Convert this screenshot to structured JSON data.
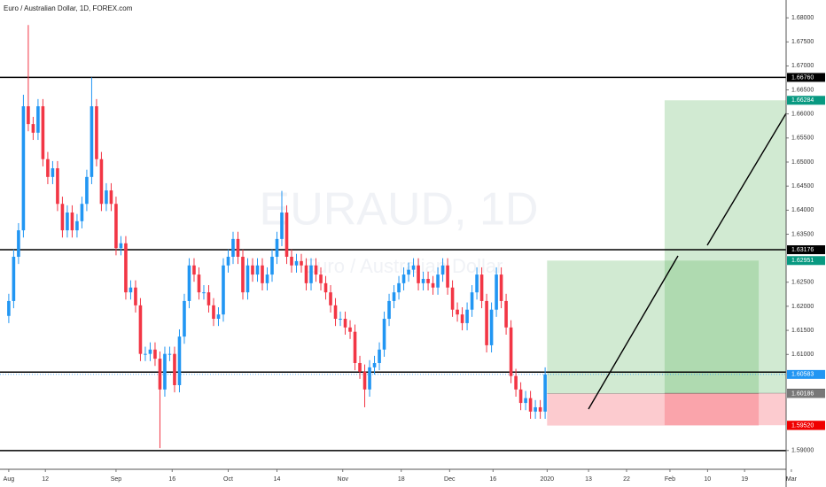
{
  "chart_data": {
    "type": "candlestick",
    "title": "Euro / Australian Dollar, 1D, FOREX.com",
    "watermark": {
      "symbol": "EURAUD, 1D",
      "description": "Euro / Australian Dollar"
    },
    "up_color": "#2196f3",
    "down_color": "#f23645",
    "open": [
      1.618,
      1.6211,
      1.6303,
      1.6358,
      1.6616,
      1.6579,
      1.6561,
      1.6616,
      1.6506,
      1.6469,
      1.6487,
      1.6413,
      1.6358,
      1.6395,
      1.6358,
      1.6377,
      1.6413,
      1.6469,
      1.6616,
      1.6506,
      1.6413,
      1.6441,
      1.6413,
      1.6321,
      1.6331,
      1.6229,
      1.6239,
      1.6202,
      1.6101,
      1.6101,
      1.611,
      1.6091,
      1.6027,
      1.6101,
      1.6101,
      1.6036,
      1.6137,
      1.6211,
      1.6285,
      1.6266,
      1.6229,
      1.6229,
      1.6202,
      1.6174,
      1.6183,
      1.6285,
      1.6303,
      1.634,
      1.6303,
      1.6229,
      1.6285,
      1.6266,
      1.6285,
      1.6248,
      1.6266,
      1.6303,
      1.634,
      1.6395,
      1.6303,
      1.6285,
      1.6294,
      1.6285,
      1.6248,
      1.6285,
      1.6266,
      1.6248,
      1.6229,
      1.6202,
      1.6174,
      1.6174,
      1.6156,
      1.6147,
      1.6082,
      1.6064,
      1.6027,
      1.6073,
      1.6082,
      1.611,
      1.6174,
      1.6211,
      1.6229,
      1.6248,
      1.6266,
      1.6276,
      1.6285,
      1.6248,
      1.6257,
      1.6248,
      1.6239,
      1.6266,
      1.6285,
      1.6239,
      1.6193,
      1.6183,
      1.6165,
      1.6193,
      1.6229,
      1.6266,
      1.6211,
      1.6119,
      1.6193,
      1.6266,
      1.6211,
      1.6156,
      1.6055,
      1.6027,
      1.5999,
      1.6009,
      1.5981,
      1.599,
      1.5981
    ],
    "high": [
      1.6226,
      1.6318,
      1.6373,
      1.664,
      1.6785,
      1.6594,
      1.6631,
      1.6631,
      1.6521,
      1.6502,
      1.6502,
      1.6428,
      1.641,
      1.641,
      1.6392,
      1.6428,
      1.6484,
      1.6676,
      1.6631,
      1.6521,
      1.6456,
      1.6456,
      1.6428,
      1.6346,
      1.6346,
      1.6254,
      1.6254,
      1.6217,
      1.6116,
      1.6125,
      1.6125,
      1.6106,
      1.6116,
      1.6116,
      1.6116,
      1.6152,
      1.6226,
      1.63,
      1.63,
      1.6281,
      1.6244,
      1.6244,
      1.6217,
      1.6198,
      1.63,
      1.6318,
      1.6355,
      1.6355,
      1.6318,
      1.63,
      1.63,
      1.63,
      1.63,
      1.6281,
      1.6318,
      1.6355,
      1.644,
      1.641,
      1.6318,
      1.6309,
      1.6309,
      1.63,
      1.63,
      1.63,
      1.6281,
      1.6263,
      1.6244,
      1.6217,
      1.6189,
      1.6189,
      1.6171,
      1.6162,
      1.6097,
      1.6079,
      1.6088,
      1.6097,
      1.6125,
      1.6189,
      1.6226,
      1.6244,
      1.6263,
      1.6281,
      1.6291,
      1.63,
      1.63,
      1.6272,
      1.6272,
      1.6263,
      1.6281,
      1.63,
      1.63,
      1.6254,
      1.6208,
      1.6198,
      1.6208,
      1.6244,
      1.6281,
      1.6281,
      1.6226,
      1.6208,
      1.6281,
      1.6281,
      1.6226,
      1.6171,
      1.607,
      1.6042,
      1.6024,
      1.6024,
      1.6005,
      1.6005,
      1.6073
    ],
    "low": [
      1.6165,
      1.6196,
      1.6288,
      1.6343,
      1.6564,
      1.6546,
      1.6546,
      1.6491,
      1.6454,
      1.6454,
      1.6398,
      1.6343,
      1.6343,
      1.6343,
      1.6343,
      1.6362,
      1.6398,
      1.6454,
      1.6491,
      1.6398,
      1.6398,
      1.6398,
      1.6306,
      1.6306,
      1.6214,
      1.6214,
      1.6187,
      1.6086,
      1.6086,
      1.6086,
      1.6076,
      1.5905,
      1.6012,
      1.6086,
      1.6021,
      1.6021,
      1.6122,
      1.6196,
      1.6251,
      1.6214,
      1.6214,
      1.6187,
      1.6159,
      1.6159,
      1.6168,
      1.627,
      1.6288,
      1.6288,
      1.6214,
      1.6214,
      1.6251,
      1.6251,
      1.6233,
      1.6233,
      1.6251,
      1.6288,
      1.6325,
      1.6288,
      1.627,
      1.627,
      1.627,
      1.6233,
      1.6233,
      1.6251,
      1.6233,
      1.6214,
      1.6187,
      1.6159,
      1.6159,
      1.6141,
      1.6132,
      1.6067,
      1.6049,
      1.599,
      1.6012,
      1.6058,
      1.6067,
      1.6095,
      1.6159,
      1.6196,
      1.6214,
      1.6233,
      1.6251,
      1.6261,
      1.6233,
      1.6233,
      1.6233,
      1.6224,
      1.6224,
      1.6251,
      1.6224,
      1.6178,
      1.6168,
      1.615,
      1.615,
      1.6178,
      1.6214,
      1.6196,
      1.6104,
      1.6104,
      1.6178,
      1.6196,
      1.6141,
      1.604,
      1.6012,
      1.5984,
      1.5984,
      1.5966,
      1.5966,
      1.5966,
      1.5966
    ],
    "close": [
      1.6211,
      1.6303,
      1.6358,
      1.6616,
      1.6579,
      1.6561,
      1.6616,
      1.6506,
      1.6469,
      1.6487,
      1.6413,
      1.6358,
      1.6395,
      1.6358,
      1.6377,
      1.6413,
      1.6469,
      1.6616,
      1.6506,
      1.6413,
      1.6441,
      1.6413,
      1.6321,
      1.6331,
      1.6229,
      1.6239,
      1.6202,
      1.6101,
      1.6101,
      1.611,
      1.6091,
      1.6027,
      1.6101,
      1.6101,
      1.6036,
      1.6137,
      1.6211,
      1.6285,
      1.6266,
      1.6229,
      1.6229,
      1.6202,
      1.6174,
      1.6183,
      1.6285,
      1.6303,
      1.634,
      1.6303,
      1.6229,
      1.6285,
      1.6266,
      1.6285,
      1.6248,
      1.6266,
      1.6303,
      1.634,
      1.6395,
      1.6303,
      1.6285,
      1.6294,
      1.6285,
      1.6248,
      1.6285,
      1.6266,
      1.6248,
      1.6229,
      1.6202,
      1.6174,
      1.6174,
      1.6156,
      1.6147,
      1.6082,
      1.6064,
      1.6027,
      1.6073,
      1.6082,
      1.611,
      1.6174,
      1.6211,
      1.6229,
      1.6248,
      1.6266,
      1.6276,
      1.6285,
      1.6248,
      1.6257,
      1.6248,
      1.6239,
      1.6266,
      1.6285,
      1.6239,
      1.6193,
      1.6183,
      1.6165,
      1.6193,
      1.6229,
      1.6266,
      1.6211,
      1.6119,
      1.6193,
      1.6266,
      1.6211,
      1.6156,
      1.6055,
      1.6027,
      1.5999,
      1.6009,
      1.5981,
      1.599,
      1.5981,
      1.60583
    ],
    "xlim": [
      -1.8,
      167.6
    ],
    "ylim": [
      1.5861,
      1.6837
    ],
    "xticks": [
      {
        "value": 0,
        "label": "Aug"
      },
      {
        "value": 7.5,
        "label": "12"
      },
      {
        "value": 22,
        "label": "Sep"
      },
      {
        "value": 33.5,
        "label": "16"
      },
      {
        "value": 45,
        "label": "Oct"
      },
      {
        "value": 55,
        "label": "14"
      },
      {
        "value": 68.5,
        "label": "Nov"
      },
      {
        "value": 80.5,
        "label": "18"
      },
      {
        "value": 90.4,
        "label": "Dec"
      },
      {
        "value": 99.3,
        "label": "16"
      },
      {
        "value": 110.4,
        "label": "2020"
      },
      {
        "value": 118.9,
        "label": "13"
      },
      {
        "value": 126.7,
        "label": "22"
      },
      {
        "value": 135.6,
        "label": "Feb"
      },
      {
        "value": 143.3,
        "label": "10"
      },
      {
        "value": 150.9,
        "label": "19"
      },
      {
        "value": 160.5,
        "label": "Mar"
      }
    ],
    "yticks": [
      {
        "value": 1.68,
        "label": "1.68000"
      },
      {
        "value": 1.675,
        "label": "1.67500"
      },
      {
        "value": 1.67,
        "label": "1.67000"
      },
      {
        "value": 1.665,
        "label": "1.66500"
      },
      {
        "value": 1.66,
        "label": "1.66000"
      },
      {
        "value": 1.655,
        "label": "1.65500"
      },
      {
        "value": 1.65,
        "label": "1.65000"
      },
      {
        "value": 1.645,
        "label": "1.64500"
      },
      {
        "value": 1.64,
        "label": "1.64000"
      },
      {
        "value": 1.635,
        "label": "1.63500"
      },
      {
        "value": 1.625,
        "label": "1.62500"
      },
      {
        "value": 1.62,
        "label": "1.62000"
      },
      {
        "value": 1.615,
        "label": "1.61500"
      },
      {
        "value": 1.61,
        "label": "1.61000"
      },
      {
        "value": 1.59,
        "label": "1.59000"
      }
    ],
    "grid": false,
    "hlines": [
      1.6676,
      1.63176,
      1.6063,
      1.59
    ],
    "positions": [
      {
        "x0": 110.4,
        "x1": 153.8,
        "target": 1.62951,
        "entry": 1.60186,
        "stop": 1.5952
      },
      {
        "x0": 134.5,
        "x1": 159.5,
        "target": 1.66284,
        "entry": 1.60193,
        "stop": 1.59527
      }
    ],
    "price_tags": [
      {
        "value": 1.6676,
        "label": "1.66760",
        "color": "#000000"
      },
      {
        "value": 1.66284,
        "label": "1.66284",
        "color": "#089981"
      },
      {
        "value": 1.63176,
        "label": "1.63176",
        "color": "#000000"
      },
      {
        "value": 1.62951,
        "label": "1.62951",
        "color": "#089981"
      },
      {
        "value": 1.60583,
        "label": "1.60583",
        "color": "#2196f3",
        "line": "dotted"
      },
      {
        "value": 1.60193,
        "label": "1.60193",
        "color": "#4a4a4a"
      },
      {
        "value": 1.60186,
        "label": "1.60186",
        "color": "#787878"
      },
      {
        "value": 1.59527,
        "label": "1.59527",
        "color": "#f00000"
      },
      {
        "value": 1.5952,
        "label": "1.59520",
        "color": "#f00000"
      }
    ]
  }
}
